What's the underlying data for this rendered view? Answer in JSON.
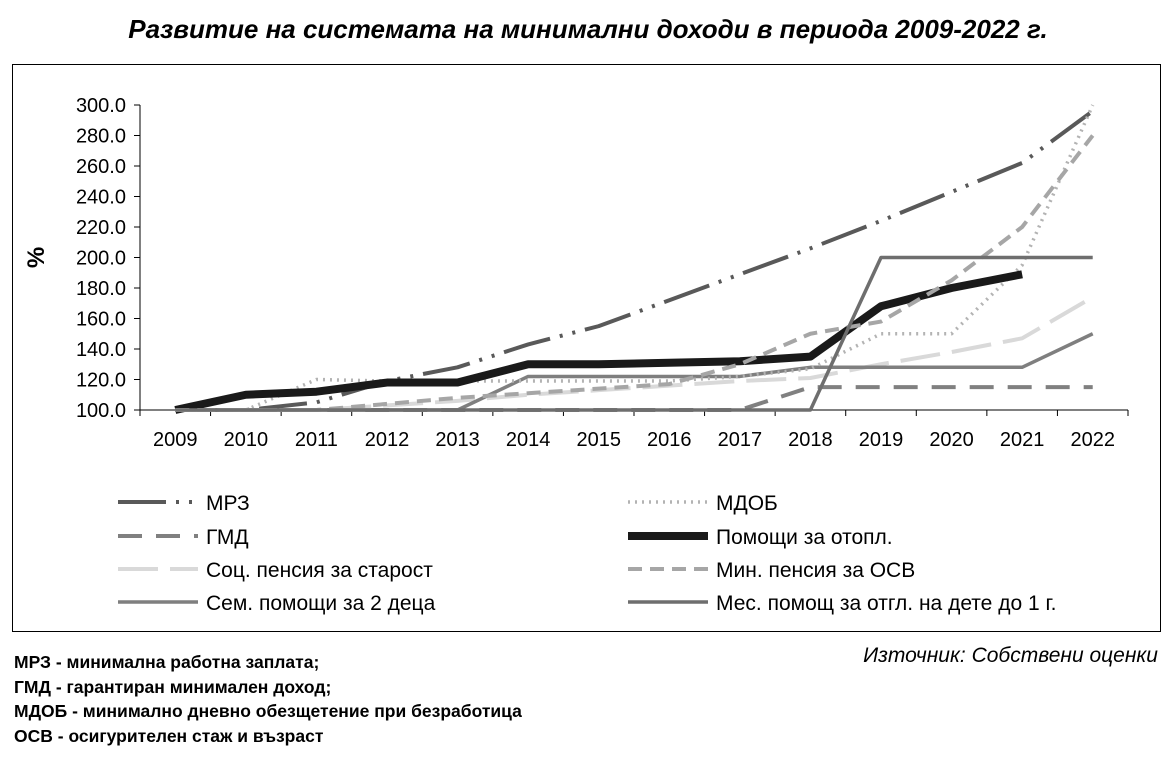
{
  "chart_data": {
    "type": "line",
    "title": "Развитие на системата на минимални доходи в периода 2009-2022 г.",
    "ylabel": "%",
    "xlabel": "",
    "x": [
      "2009",
      "2010",
      "2011",
      "2012",
      "2013",
      "2014",
      "2015",
      "2016",
      "2017",
      "2018",
      "2019",
      "2020",
      "2021",
      "2022"
    ],
    "ylim": [
      100,
      300
    ],
    "yticks": [
      "100.0",
      "120.0",
      "140.0",
      "160.0",
      "180.0",
      "200.0",
      "220.0",
      "240.0",
      "260.0",
      "280.0",
      "300.0"
    ],
    "grid": false,
    "legend_position": "bottom",
    "series": [
      {
        "name": "МРЗ",
        "color": "#595959",
        "dash": "48,10,3,10,3,10",
        "width": 4,
        "values": [
          100,
          100,
          105,
          119,
          128,
          143,
          155,
          172,
          189,
          206,
          224,
          243,
          262,
          296
        ]
      },
      {
        "name": "ГМД",
        "color": "#808080",
        "dash": "24,14",
        "width": 4,
        "values": [
          100,
          100,
          100,
          100,
          100,
          100,
          100,
          100,
          100,
          115,
          115,
          115,
          115,
          115
        ]
      },
      {
        "name": "Соц. пенсия за старост",
        "color": "#d9d9d9",
        "dash": "40,12",
        "width": 4,
        "values": [
          100,
          100,
          100,
          103,
          106,
          110,
          113,
          116,
          119,
          121,
          130,
          138,
          147,
          174
        ]
      },
      {
        "name": "Сем. помощи за 2 деца",
        "color": "#7f7f7f",
        "dash": "",
        "width": 3.5,
        "values": [
          100,
          100,
          100,
          100,
          100,
          122,
          122,
          122,
          122,
          128,
          128,
          128,
          128,
          150
        ]
      },
      {
        "name": "МДОБ",
        "color": "#b3b3b3",
        "dash": "2,5",
        "width": 3.5,
        "values": [
          100,
          100,
          120,
          119,
          119,
          119,
          119,
          119,
          122,
          127,
          150,
          150,
          195,
          300
        ]
      },
      {
        "name": "Помощи за отопл.",
        "color": "#1a1a1a",
        "dash": "",
        "width": 8,
        "values": [
          100,
          110,
          112,
          118,
          118,
          130,
          130,
          131,
          132,
          135,
          168,
          180,
          189,
          null
        ]
      },
      {
        "name": "Мин. пенсия за ОСВ",
        "color": "#a6a6a6",
        "dash": "14,8",
        "width": 4,
        "values": [
          100,
          100,
          100,
          104,
          108,
          111,
          114,
          117,
          130,
          150,
          158,
          185,
          220,
          280
        ]
      },
      {
        "name": "Мес. помощ за отгл. на дете до 1 г.",
        "color": "#6e6e6e",
        "dash": "",
        "width": 3.5,
        "values": [
          100,
          100,
          100,
          100,
          100,
          100,
          100,
          100,
          100,
          100,
          200,
          200,
          200,
          200
        ]
      }
    ]
  },
  "notes": [
    "МРЗ - минимална работна заплата;",
    "ГМД - гарантиран минимален доход;",
    "МДОБ - минимално дневно обезщетение при безработица",
    "ОСВ - осигурителен стаж и възраст"
  ],
  "source": "Източник: Собствени оценки"
}
